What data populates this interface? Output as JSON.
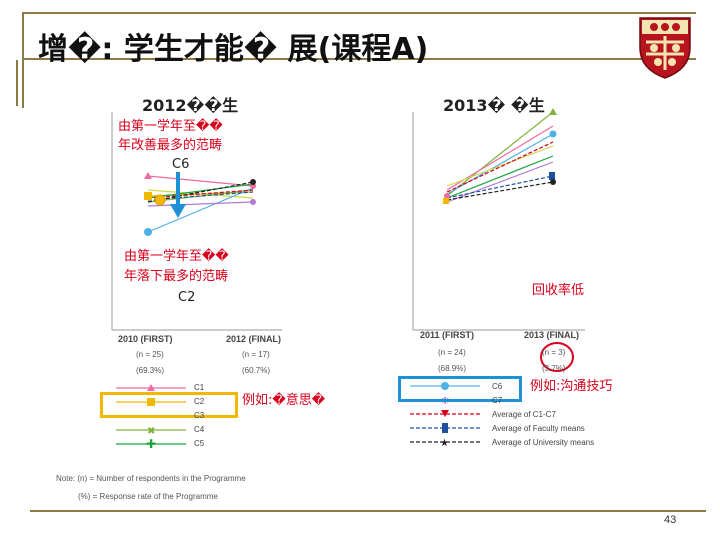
{
  "slide": {
    "title": "增�: 学生才能� 展(课程A)",
    "page_number": "43"
  },
  "left_chart": {
    "heading": "2012��生",
    "improve_note_line1": "由第一学年至��",
    "improve_note_line2": "年改善最多的范畴",
    "improve_code": "C6",
    "decline_note_line1": "由第一学年至��",
    "decline_note_line2": "年落下最多的范畴",
    "decline_code": "C2",
    "x_first": "2010 (FIRST)",
    "x_final": "2012 (FINAL)",
    "n_first": "(n = 25)",
    "n_final": "(n = 17)",
    "rate_first": "(69.3%)",
    "rate_final": "(60.7%)"
  },
  "right_chart": {
    "heading": "2013� �生",
    "low_response_note": "回收率低",
    "x_first": "2011 (FIRST)",
    "x_final": "2013 (FINAL)",
    "n_first": "(n = 24)",
    "n_final": "(n = 3)",
    "rate_first": "(68.9%)",
    "rate_final": "(3.7%)"
  },
  "legend_left": {
    "items": [
      "C1",
      "C2",
      "C3",
      "C4",
      "C5"
    ],
    "example_label": "例如:�意思�"
  },
  "legend_right": {
    "items": [
      "C6",
      "C7",
      "Average of C1-C7",
      "Average of Faculty means",
      "Average of University means"
    ],
    "example_label": "例如:沟通技巧"
  },
  "notes": {
    "line1": "Note: (n) = Number of respondents in the Programme",
    "line2": "(%) = Response rate of the Programme"
  },
  "colors": {
    "accent_red": "#d9001b",
    "rule": "#8a7a45",
    "highlight_yellow": "#f2b800",
    "highlight_blue": "#1e90d6",
    "C1": "#f06aa0",
    "C2": "#f2b800",
    "C3": "#cfd94a",
    "C4": "#7fb23a",
    "C5": "#1aa53a",
    "C6": "#4fb0e8",
    "C7": "#b27ad6"
  }
}
